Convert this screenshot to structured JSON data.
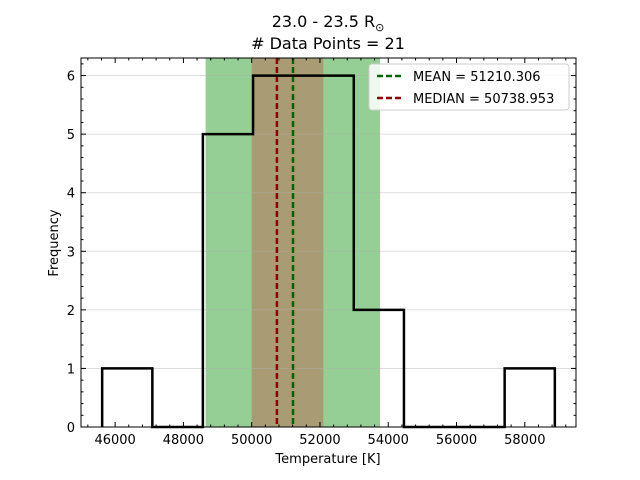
{
  "chart_data": {
    "type": "histogram",
    "title_line1": "23.0 - 23.5 R",
    "title_subscript": "⊙",
    "title_line2": "# Data Points = 21",
    "xlabel": "Temperature [K]",
    "ylabel": "Frequency",
    "xlim": [
      45000,
      59500
    ],
    "ylim": [
      0,
      6.3
    ],
    "xticks": [
      46000,
      48000,
      50000,
      52000,
      54000,
      56000,
      58000
    ],
    "yticks": [
      0,
      1,
      2,
      3,
      4,
      5,
      6
    ],
    "grid": "horizontal",
    "bins": [
      {
        "x0": 45620,
        "x1": 47090,
        "count": 1
      },
      {
        "x0": 47090,
        "x1": 48570,
        "count": 0
      },
      {
        "x0": 48570,
        "x1": 50040,
        "count": 5
      },
      {
        "x0": 50040,
        "x1": 51520,
        "count": 6
      },
      {
        "x0": 51520,
        "x1": 52990,
        "count": 6
      },
      {
        "x0": 52990,
        "x1": 54460,
        "count": 2
      },
      {
        "x0": 54460,
        "x1": 55940,
        "count": 0
      },
      {
        "x0": 55940,
        "x1": 57410,
        "count": 0
      },
      {
        "x0": 57410,
        "x1": 58880,
        "count": 1
      }
    ],
    "mean": {
      "label": "MEAN = 51210.306",
      "value": 51210.306,
      "color": "#006400"
    },
    "median": {
      "label": "MEDIAN = 50738.953",
      "value": 50738.953,
      "color": "#8b0000"
    },
    "bands": [
      {
        "x0": 48650,
        "x1": 53760,
        "color": "#2ca02c",
        "opacity": 0.5
      },
      {
        "x0": 50000,
        "x1": 52100,
        "color": "#d62728",
        "opacity": 0.3
      }
    ],
    "legend_position": "top-right"
  }
}
